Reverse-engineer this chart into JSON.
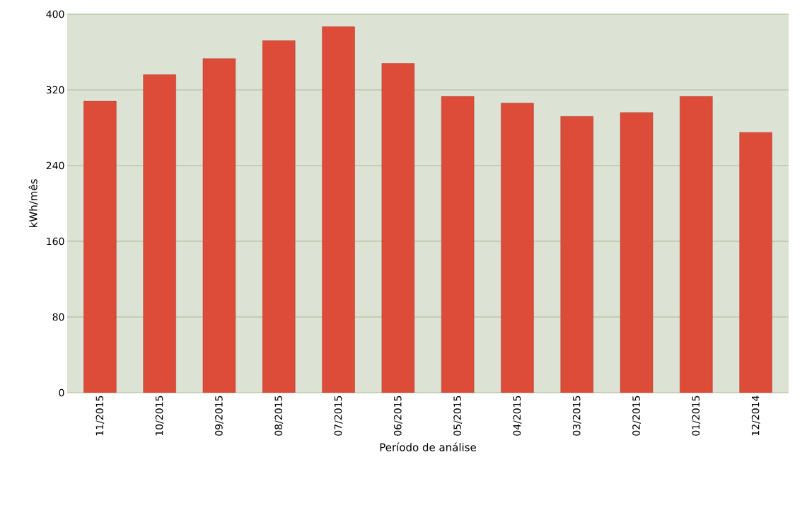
{
  "chart_data": {
    "type": "bar",
    "xlabel": "Período de análise",
    "ylabel": "kWh/mês",
    "categories": [
      "11/2015",
      "10/2015",
      "09/2015",
      "08/2015",
      "07/2015",
      "06/2015",
      "05/2015",
      "04/2015",
      "03/2015",
      "02/2015",
      "01/2015",
      "12/2014"
    ],
    "values": [
      308,
      336,
      353,
      372,
      387,
      348,
      313,
      306,
      292,
      296,
      313,
      275
    ],
    "color": "#dd4b39",
    "ylim": [
      0,
      400
    ],
    "yticks": [
      0,
      80,
      160,
      240,
      320,
      400
    ],
    "grid": "y"
  }
}
